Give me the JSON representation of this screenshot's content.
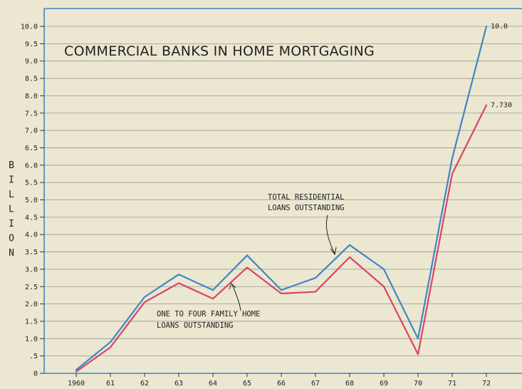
{
  "chart_data": {
    "type": "line",
    "title": "COMMERCIAL BANKS IN HOME MORTGAGING",
    "ylabel": "BILLION",
    "xlabel": "",
    "x": [
      "1960",
      "61",
      "62",
      "63",
      "64",
      "65",
      "66",
      "67",
      "68",
      "69",
      "70",
      "71",
      "72"
    ],
    "yticks": [
      "10.0",
      "9.5",
      "9.0",
      "8.5",
      "8.0",
      "7.5",
      "7.0",
      "6.5",
      "6.0",
      "5.5",
      "5.0",
      "4.5",
      "4.0",
      "3.5",
      "3.0",
      "2.5",
      "2.0",
      "1.5",
      "1.0",
      ".5",
      "0"
    ],
    "ylim": [
      0,
      10.0
    ],
    "grid": true,
    "series": [
      {
        "name": "TOTAL RESIDENTIAL LOANS OUTSTANDING",
        "color": "#3f86c4",
        "values": [
          0.1,
          0.9,
          2.2,
          2.85,
          2.4,
          3.4,
          2.4,
          2.75,
          3.7,
          3.0,
          1.0,
          6.2,
          10.0
        ],
        "end_label": "10.0"
      },
      {
        "name": "ONE TO FOUR FAMILY HOME LOANS OUTSTANDING",
        "color": "#d8456a",
        "values": [
          0.05,
          0.75,
          2.05,
          2.6,
          2.15,
          3.05,
          2.3,
          2.35,
          3.35,
          2.5,
          0.55,
          5.75,
          7.73
        ],
        "end_label": "7.730"
      }
    ],
    "annotations": [
      {
        "lines": [
          "TOTAL RESIDENTIAL",
          "LOANS OUTSTANDING"
        ]
      },
      {
        "lines": [
          "ONE TO FOUR FAMILY HOME",
          "LOANS OUTSTANDING"
        ]
      }
    ]
  },
  "colors": {
    "background": "#ece7d1",
    "axis": "#3f86c4",
    "grid": "#8a8a86"
  }
}
